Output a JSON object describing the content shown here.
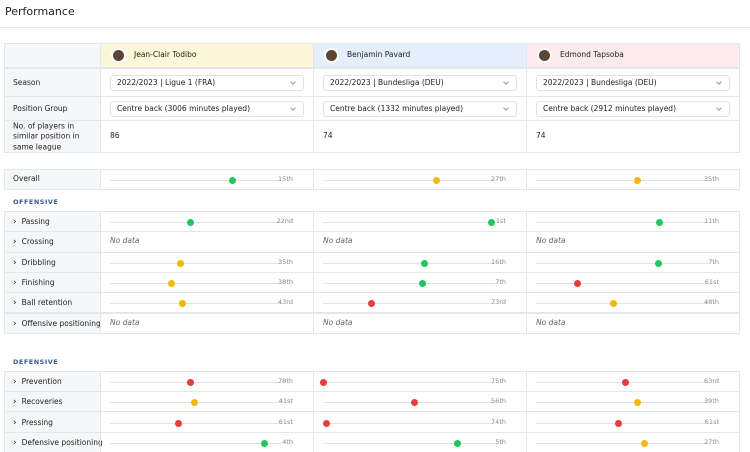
{
  "title": "Performance",
  "row_labels": {
    "season": "Season",
    "position_group": "Position Group",
    "similar_players": "No. of players in similar position in same league"
  },
  "players": [
    {
      "name": "Jean-Clair Todibo",
      "header_color": "#fdf6d8",
      "season": "2022/2023 | Ligue 1 (FRA)",
      "position_group": "Centre back (3006 minutes played)",
      "similar_players": 86
    },
    {
      "name": "Benjamin Pavard",
      "header_color": "#e5eefb",
      "season": "2022/2023 | Bundesliga (DEU)",
      "position_group": "Centre back (1332 minutes played)",
      "similar_players": 74
    },
    {
      "name": "Edmond Tapsoba",
      "header_color": "#fcebec",
      "season": "2022/2023 | Bundesliga (DEU)",
      "position_group": "Centre back (2912 minutes played)",
      "similar_players": 74
    }
  ],
  "scale": [
    0,
    100
  ],
  "overall": {
    "label": "Overall",
    "cells": [
      {
        "rank": "15th",
        "score": 71,
        "color": "#22c55e"
      },
      {
        "rank": "27th",
        "score": 66,
        "color": "#f2b705"
      },
      {
        "rank": "35th",
        "score": 59,
        "color": "#f2b705"
      }
    ]
  },
  "sections": [
    {
      "title": "OFFENSIVE",
      "metrics": [
        {
          "label": "Passing",
          "cells": [
            {
              "rank": "22nd",
              "score": 47,
              "color": "#22c55e"
            },
            {
              "rank": "1st",
              "score": 98,
              "color": "#22c55e"
            },
            {
              "rank": "11th",
              "score": 72,
              "color": "#22c55e"
            }
          ]
        },
        {
          "label": "Crossing",
          "cells": [
            {
              "text": "No data"
            },
            {
              "text": "No data"
            },
            {
              "text": "No data"
            }
          ]
        },
        {
          "label": "Dribbling",
          "cells": [
            {
              "rank": "35th",
              "score": 41,
              "color": "#f2b705"
            },
            {
              "rank": "16th",
              "score": 59,
              "color": "#22c55e"
            },
            {
              "rank": "7th",
              "score": 71,
              "color": "#22c55e"
            }
          ]
        },
        {
          "label": "Finishing",
          "cells": [
            {
              "rank": "38th",
              "score": 36,
              "color": "#f2b705"
            },
            {
              "rank": "7th",
              "score": 58,
              "color": "#22c55e"
            },
            {
              "rank": "61st",
              "score": 24,
              "color": "#e53e3e"
            }
          ]
        },
        {
          "label": "Ball retention",
          "cells": [
            {
              "rank": "43rd",
              "score": 42,
              "color": "#f2b705"
            },
            {
              "rank": "73rd",
              "score": 28,
              "color": "#e53e3e"
            },
            {
              "rank": "48th",
              "score": 45,
              "color": "#f2b705"
            }
          ]
        },
        {
          "label": "Offensive positioning",
          "cells": [
            {
              "text": "No data"
            },
            {
              "text": "No data"
            },
            {
              "text": "No data"
            }
          ]
        }
      ]
    },
    {
      "title": "DEFENSIVE",
      "metrics": [
        {
          "label": "Prevention",
          "cells": [
            {
              "rank": "78th",
              "score": 47,
              "color": "#e53e3e"
            },
            {
              "rank": "75th",
              "score": 0,
              "color": "#e53e3e"
            },
            {
              "rank": "63rd",
              "score": 52,
              "color": "#e53e3e"
            }
          ]
        },
        {
          "label": "Recoveries",
          "cells": [
            {
              "rank": "41st",
              "score": 49,
              "color": "#f2b705"
            },
            {
              "rank": "56th",
              "score": 53,
              "color": "#e53e3e"
            },
            {
              "rank": "39th",
              "score": 59,
              "color": "#f2b705"
            }
          ]
        },
        {
          "label": "Pressing",
          "cells": [
            {
              "rank": "61st",
              "score": 40,
              "color": "#e53e3e"
            },
            {
              "rank": "74th",
              "score": 2,
              "color": "#e53e3e"
            },
            {
              "rank": "61st",
              "score": 48,
              "color": "#e53e3e"
            }
          ]
        },
        {
          "label": "Defensive positioning",
          "cells": [
            {
              "rank": "4th",
              "score": 90,
              "color": "#22c55e"
            },
            {
              "rank": "5th",
              "score": 78,
              "color": "#22c55e"
            },
            {
              "rank": "27th",
              "score": 63,
              "color": "#f2b705"
            }
          ]
        }
      ]
    }
  ]
}
